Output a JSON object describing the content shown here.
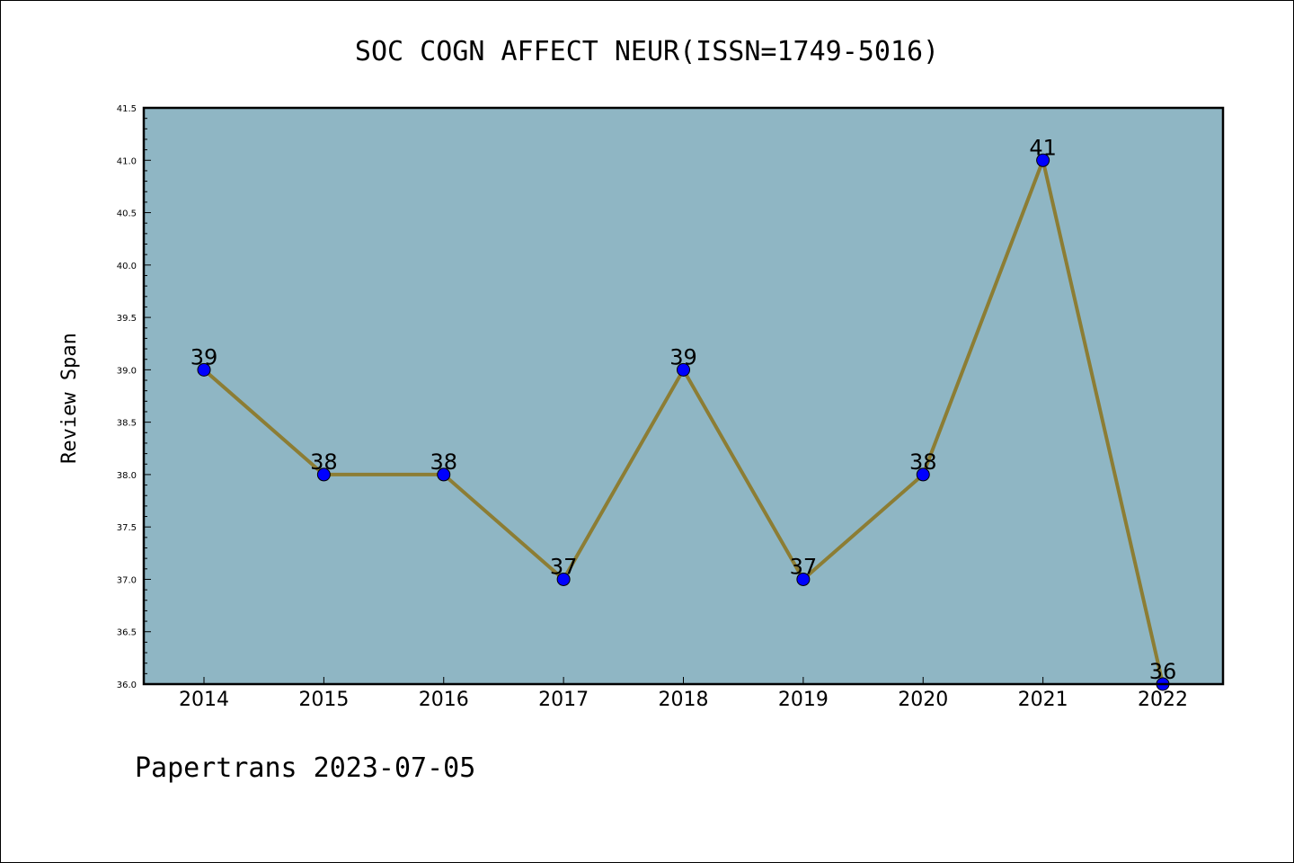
{
  "chart_data": {
    "type": "line",
    "title": "SOC COGN AFFECT NEUR(ISSN=1749-5016)",
    "xlabel": "",
    "ylabel": "Review Span",
    "categories": [
      "2014",
      "2015",
      "2016",
      "2017",
      "2018",
      "2019",
      "2020",
      "2021",
      "2022"
    ],
    "values": [
      39,
      38,
      38,
      37,
      39,
      37,
      38,
      41,
      36
    ],
    "data_labels": [
      "39",
      "38",
      "38",
      "37",
      "39",
      "37",
      "38",
      "41",
      "36"
    ],
    "ylim": [
      36.0,
      41.5
    ],
    "yticks": [
      "36.0",
      "36.5",
      "37.0",
      "37.5",
      "38.0",
      "38.5",
      "39.0",
      "39.5",
      "40.0",
      "40.5",
      "41.0",
      "41.5"
    ],
    "grid": false,
    "legend": "none",
    "colors": {
      "plot_background": "#8fb6c4",
      "line": "#8c7d34",
      "marker": "#0000ff",
      "axis": "#000000"
    }
  },
  "footer": {
    "text": "Papertrans 2023-07-05"
  }
}
